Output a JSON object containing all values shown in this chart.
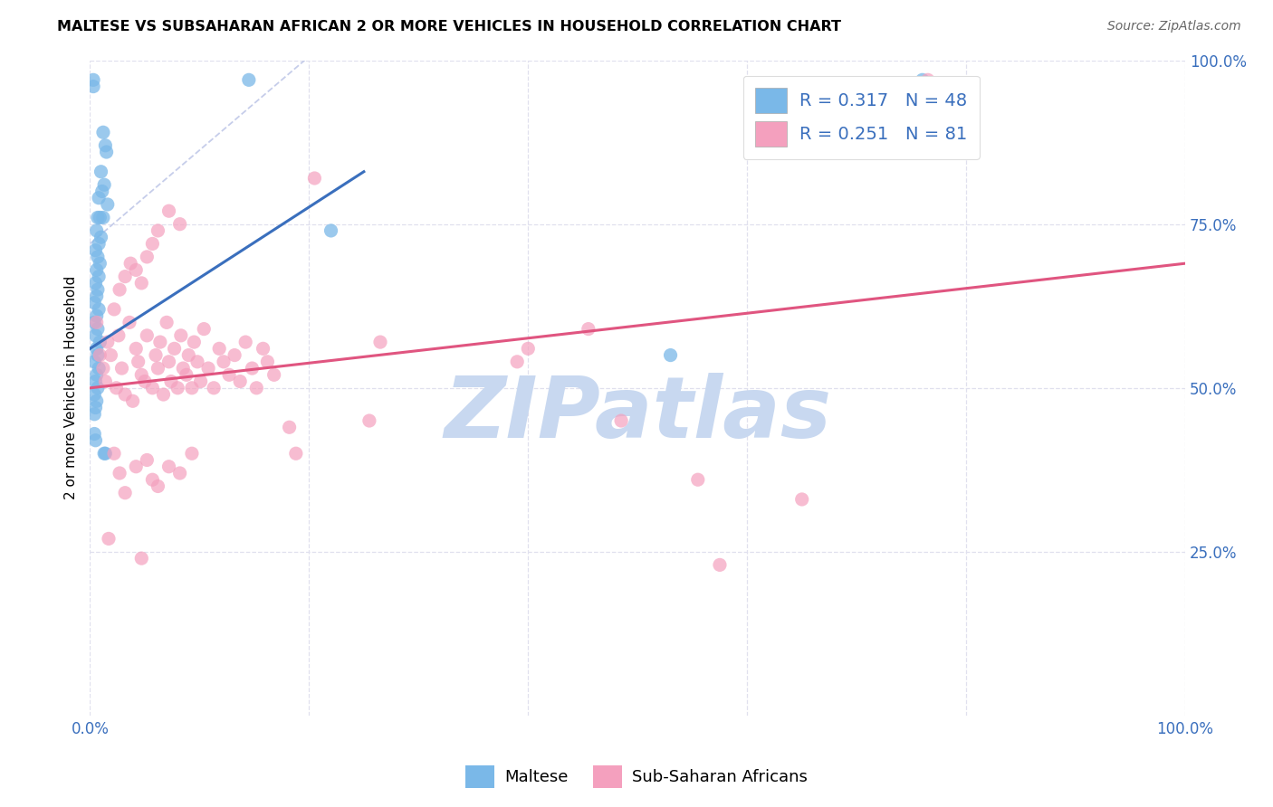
{
  "title": "MALTESE VS SUBSAHARAN AFRICAN 2 OR MORE VEHICLES IN HOUSEHOLD CORRELATION CHART",
  "source": "Source: ZipAtlas.com",
  "ylabel": "2 or more Vehicles in Household",
  "blue_color": "#7ab8e8",
  "pink_color": "#f4a0be",
  "blue_line_color": "#3a6fbd",
  "pink_line_color": "#e05580",
  "dashed_line_color": "#c0c8e8",
  "watermark_text": "ZIPatlas",
  "watermark_color": "#c8d8f0",
  "legend_text_color": "#3a6fbd",
  "right_tick_color": "#3a6fbd",
  "xlim": [
    0.0,
    1.0
  ],
  "ylim": [
    0.0,
    1.0
  ],
  "blue_scatter": [
    [
      0.003,
      0.97
    ],
    [
      0.003,
      0.96
    ],
    [
      0.012,
      0.89
    ],
    [
      0.014,
      0.87
    ],
    [
      0.015,
      0.86
    ],
    [
      0.01,
      0.83
    ],
    [
      0.013,
      0.81
    ],
    [
      0.011,
      0.8
    ],
    [
      0.008,
      0.79
    ],
    [
      0.016,
      0.78
    ],
    [
      0.007,
      0.76
    ],
    [
      0.009,
      0.76
    ],
    [
      0.012,
      0.76
    ],
    [
      0.006,
      0.74
    ],
    [
      0.01,
      0.73
    ],
    [
      0.008,
      0.72
    ],
    [
      0.005,
      0.71
    ],
    [
      0.007,
      0.7
    ],
    [
      0.009,
      0.69
    ],
    [
      0.006,
      0.68
    ],
    [
      0.008,
      0.67
    ],
    [
      0.005,
      0.66
    ],
    [
      0.007,
      0.65
    ],
    [
      0.006,
      0.64
    ],
    [
      0.004,
      0.63
    ],
    [
      0.008,
      0.62
    ],
    [
      0.006,
      0.61
    ],
    [
      0.004,
      0.6
    ],
    [
      0.007,
      0.59
    ],
    [
      0.005,
      0.58
    ],
    [
      0.009,
      0.57
    ],
    [
      0.006,
      0.56
    ],
    [
      0.007,
      0.55
    ],
    [
      0.004,
      0.54
    ],
    [
      0.008,
      0.53
    ],
    [
      0.006,
      0.52
    ],
    [
      0.005,
      0.51
    ],
    [
      0.007,
      0.5
    ],
    [
      0.004,
      0.49
    ],
    [
      0.006,
      0.48
    ],
    [
      0.005,
      0.47
    ],
    [
      0.004,
      0.46
    ],
    [
      0.004,
      0.43
    ],
    [
      0.005,
      0.42
    ],
    [
      0.013,
      0.4
    ],
    [
      0.014,
      0.4
    ],
    [
      0.145,
      0.97
    ],
    [
      0.22,
      0.74
    ],
    [
      0.53,
      0.55
    ],
    [
      0.76,
      0.97
    ]
  ],
  "pink_scatter": [
    [
      0.006,
      0.6
    ],
    [
      0.009,
      0.55
    ],
    [
      0.012,
      0.53
    ],
    [
      0.014,
      0.51
    ],
    [
      0.016,
      0.57
    ],
    [
      0.019,
      0.55
    ],
    [
      0.022,
      0.62
    ],
    [
      0.024,
      0.5
    ],
    [
      0.026,
      0.58
    ],
    [
      0.029,
      0.53
    ],
    [
      0.032,
      0.49
    ],
    [
      0.036,
      0.6
    ],
    [
      0.039,
      0.48
    ],
    [
      0.042,
      0.56
    ],
    [
      0.044,
      0.54
    ],
    [
      0.047,
      0.52
    ],
    [
      0.05,
      0.51
    ],
    [
      0.052,
      0.58
    ],
    [
      0.057,
      0.5
    ],
    [
      0.06,
      0.55
    ],
    [
      0.062,
      0.53
    ],
    [
      0.064,
      0.57
    ],
    [
      0.067,
      0.49
    ],
    [
      0.07,
      0.6
    ],
    [
      0.072,
      0.54
    ],
    [
      0.074,
      0.51
    ],
    [
      0.077,
      0.56
    ],
    [
      0.08,
      0.5
    ],
    [
      0.083,
      0.58
    ],
    [
      0.085,
      0.53
    ],
    [
      0.088,
      0.52
    ],
    [
      0.09,
      0.55
    ],
    [
      0.093,
      0.5
    ],
    [
      0.095,
      0.57
    ],
    [
      0.098,
      0.54
    ],
    [
      0.101,
      0.51
    ],
    [
      0.104,
      0.59
    ],
    [
      0.108,
      0.53
    ],
    [
      0.113,
      0.5
    ],
    [
      0.118,
      0.56
    ],
    [
      0.122,
      0.54
    ],
    [
      0.127,
      0.52
    ],
    [
      0.132,
      0.55
    ],
    [
      0.137,
      0.51
    ],
    [
      0.142,
      0.57
    ],
    [
      0.148,
      0.53
    ],
    [
      0.152,
      0.5
    ],
    [
      0.158,
      0.56
    ],
    [
      0.162,
      0.54
    ],
    [
      0.168,
      0.52
    ],
    [
      0.027,
      0.65
    ],
    [
      0.032,
      0.67
    ],
    [
      0.037,
      0.69
    ],
    [
      0.042,
      0.68
    ],
    [
      0.047,
      0.66
    ],
    [
      0.052,
      0.7
    ],
    [
      0.057,
      0.72
    ],
    [
      0.062,
      0.74
    ],
    [
      0.072,
      0.77
    ],
    [
      0.082,
      0.75
    ],
    [
      0.022,
      0.4
    ],
    [
      0.027,
      0.37
    ],
    [
      0.032,
      0.34
    ],
    [
      0.042,
      0.38
    ],
    [
      0.052,
      0.39
    ],
    [
      0.057,
      0.36
    ],
    [
      0.062,
      0.35
    ],
    [
      0.072,
      0.38
    ],
    [
      0.082,
      0.37
    ],
    [
      0.093,
      0.4
    ],
    [
      0.017,
      0.27
    ],
    [
      0.047,
      0.24
    ],
    [
      0.182,
      0.44
    ],
    [
      0.188,
      0.4
    ],
    [
      0.205,
      0.82
    ],
    [
      0.255,
      0.45
    ],
    [
      0.265,
      0.57
    ],
    [
      0.39,
      0.54
    ],
    [
      0.4,
      0.56
    ],
    [
      0.455,
      0.59
    ],
    [
      0.485,
      0.45
    ],
    [
      0.555,
      0.36
    ],
    [
      0.575,
      0.23
    ],
    [
      0.65,
      0.33
    ],
    [
      0.765,
      0.97
    ]
  ],
  "blue_line": [
    [
      0.0,
      0.56
    ],
    [
      0.25,
      0.83
    ]
  ],
  "pink_line": [
    [
      0.0,
      0.5
    ],
    [
      1.0,
      0.69
    ]
  ],
  "dashed_line": [
    [
      0.0,
      0.72
    ],
    [
      0.21,
      1.02
    ]
  ],
  "grid_color": "#e0e0ee",
  "grid_linestyle": "--"
}
